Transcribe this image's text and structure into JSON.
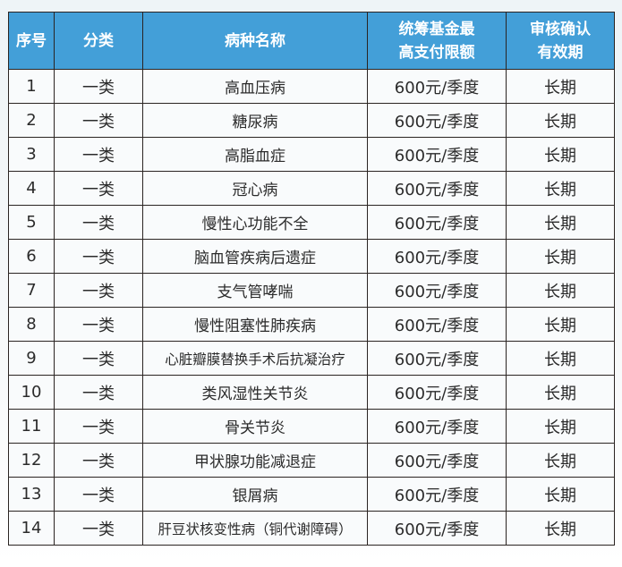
{
  "table": {
    "headers": [
      "序号",
      "分类",
      "病种名称",
      "统筹基金最\n高支付限额",
      "审核确认\n有效期"
    ],
    "header_lines": [
      [
        "序号"
      ],
      [
        "分类"
      ],
      [
        "病种名称"
      ],
      [
        "统筹基金最",
        "高支付限额"
      ],
      [
        "审核确认",
        "有效期"
      ]
    ],
    "rows": [
      [
        "1",
        "一类",
        "高血压病",
        "600元/季度",
        "长期"
      ],
      [
        "2",
        "一类",
        "糖尿病",
        "600元/季度",
        "长期"
      ],
      [
        "3",
        "一类",
        "高脂血症",
        "600元/季度",
        "长期"
      ],
      [
        "4",
        "一类",
        "冠心病",
        "600元/季度",
        "长期"
      ],
      [
        "5",
        "一类",
        "慢性心功能不全",
        "600元/季度",
        "长期"
      ],
      [
        "6",
        "一类",
        "脑血管疾病后遗症",
        "600元/季度",
        "长期"
      ],
      [
        "7",
        "一类",
        "支气管哮喘",
        "600元/季度",
        "长期"
      ],
      [
        "8",
        "一类",
        "慢性阻塞性肺疾病",
        "600元/季度",
        "长期"
      ],
      [
        "9",
        "一类",
        "心脏瓣膜替换手术后抗凝治疗",
        "600元/季度",
        "长期"
      ],
      [
        "10",
        "一类",
        "类风湿性关节炎",
        "600元/季度",
        "长期"
      ],
      [
        "11",
        "一类",
        "骨关节炎",
        "600元/季度",
        "长期"
      ],
      [
        "12",
        "一类",
        "甲状腺功能减退症",
        "600元/季度",
        "长期"
      ],
      [
        "13",
        "一类",
        "银屑病",
        "600元/季度",
        "长期"
      ],
      [
        "14",
        "一类",
        "肝豆状核变性病（铜代谢障碍）",
        "600元/季度",
        "长期"
      ]
    ]
  },
  "colors": {
    "header_bg": "#439fd8",
    "header_text": "#ffffff",
    "border": "#2a2422"
  }
}
